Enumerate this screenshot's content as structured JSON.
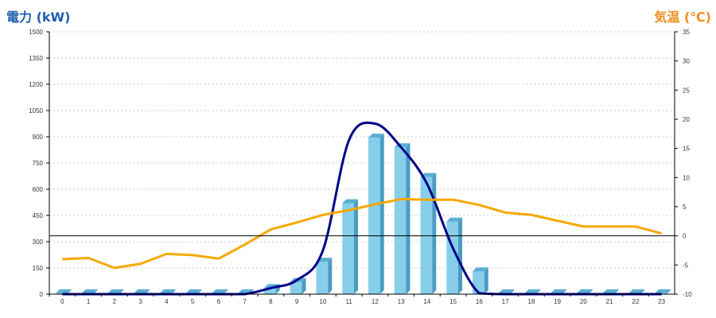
{
  "chart_data": {
    "type": "bar",
    "left_axis_label": "電力 (kW)",
    "right_axis_label": "気温 (℃)",
    "colors": {
      "left_label": "#1f5fb0",
      "right_label": "#f08c1e",
      "bar": "#87ceeb",
      "bar_side": "#4a9cc2",
      "bar_top": "#5aaed4",
      "power_curve": "#00008b",
      "temperature_line": "#f5a800",
      "grid": "#c8c8c8",
      "zero_line": "#000000"
    },
    "categories": [
      "0",
      "1",
      "2",
      "3",
      "4",
      "5",
      "6",
      "7",
      "8",
      "9",
      "10",
      "11",
      "12",
      "13",
      "14",
      "15",
      "16",
      "17",
      "18",
      "19",
      "20",
      "21",
      "22",
      "23"
    ],
    "y_left": {
      "min": 0,
      "max": 1500,
      "ticks": [
        "0",
        "150",
        "300",
        "450",
        "600",
        "750",
        "900",
        "1050",
        "1200",
        "1350",
        "1500"
      ]
    },
    "y_right": {
      "min": -10,
      "max": 35,
      "ticks": [
        "-10",
        "-5",
        "0",
        "5",
        "10",
        "15",
        "20",
        "25",
        "30",
        "35"
      ]
    },
    "grid": true,
    "series": [
      {
        "kind": "bar",
        "axis": "left",
        "values": [
          5,
          5,
          5,
          5,
          5,
          5,
          5,
          5,
          35,
          70,
          185,
          520,
          895,
          840,
          670,
          415,
          130,
          5,
          5,
          5,
          5,
          5,
          5,
          5
        ]
      },
      {
        "kind": "smooth_line",
        "axis": "left",
        "values": [
          0,
          0,
          0,
          0,
          0,
          0,
          0,
          0,
          35,
          80,
          250,
          880,
          975,
          840,
          630,
          260,
          5,
          0,
          0,
          0,
          0,
          0,
          0,
          0
        ]
      },
      {
        "kind": "line",
        "axis": "right",
        "values": [
          -4,
          -3.8,
          -5.5,
          -4.8,
          -3.1,
          -3.3,
          -3.9,
          -1.5,
          1.1,
          2.3,
          3.6,
          4.4,
          5.4,
          6.3,
          6.2,
          6.2,
          5.3,
          4,
          3.6,
          2.6,
          1.6,
          1.6,
          1.6,
          0.4
        ]
      }
    ]
  }
}
